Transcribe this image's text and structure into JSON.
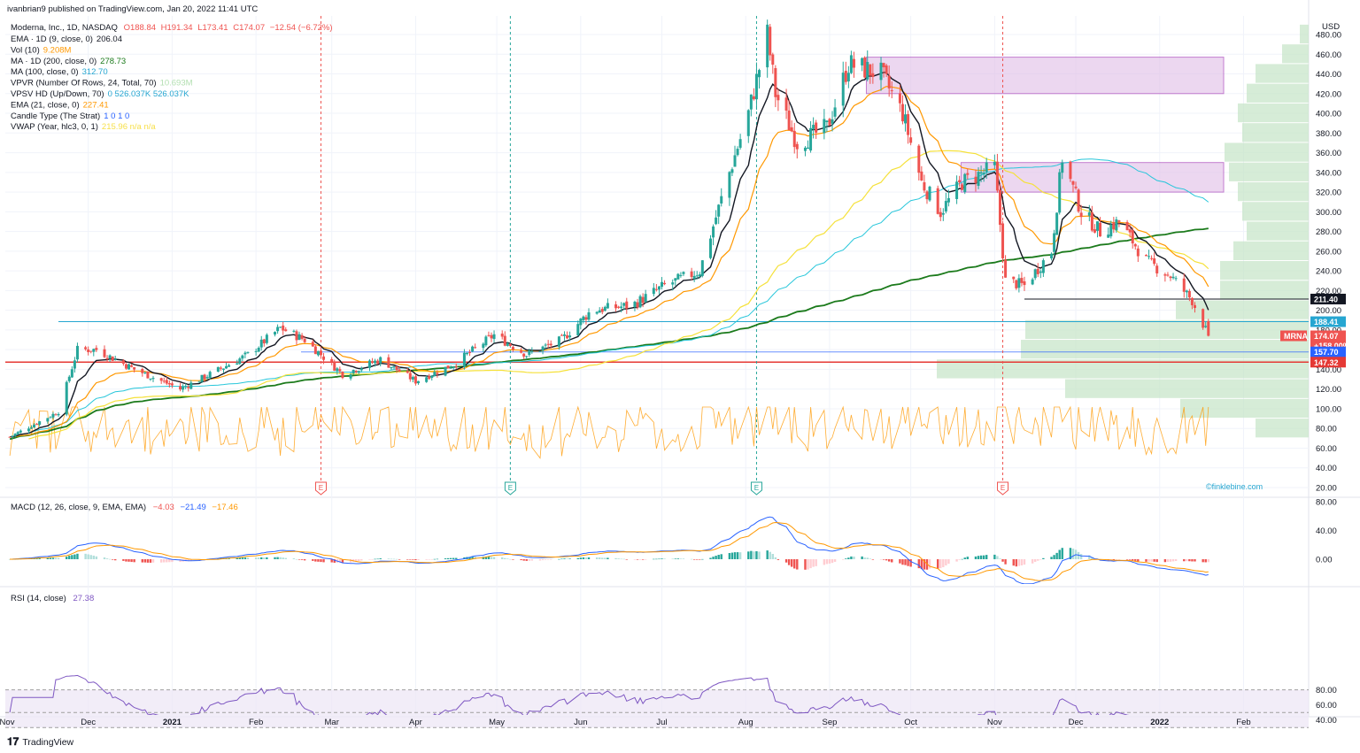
{
  "header": {
    "publisher": "ivanbrian9 published on TradingView.com, Jan 20, 2022 11:41 UTC",
    "symbol_line": "Moderna, Inc., 1D, NASDAQ",
    "ohlc": {
      "o": "O188.84",
      "h": "H191.34",
      "l": "L173.41",
      "c": "C174.07",
      "chg": "−12.54 (−6.72%)"
    },
    "indicators": [
      {
        "name": "EMA · 1D (9, close, 0)",
        "value": "206.04",
        "color": "#131722"
      },
      {
        "name": "Vol (10)",
        "value": "9.208M",
        "color": "#ff9800"
      },
      {
        "name": "MA · 1D (200, close, 0)",
        "value": "278.73",
        "color": "#1b7a1b"
      },
      {
        "name": "MA (100, close, 0)",
        "value": "312.70",
        "color": "#26a6d1"
      },
      {
        "name": "VPVR (Number Of Rows, 24, Total, 70)",
        "value": "10.693M",
        "color": "#b2dfb0"
      },
      {
        "name": "VPSV HD (Up/Down, 70)",
        "value": "0  526.037K  526.037K",
        "color": "#26a6d1"
      },
      {
        "name": "EMA (21, close, 0)",
        "value": "227.41",
        "color": "#ff9800"
      },
      {
        "name": "Candle Type (The Strat)",
        "value": "1  0  1  0",
        "color": "#2962ff"
      },
      {
        "name": "VWAP (Year, hlc3, 0, 1)",
        "value": "215.96  n/a  n/a",
        "color": "#f7e04b"
      }
    ]
  },
  "price_axis": {
    "currency": "USD",
    "ticks": [
      "480.00",
      "460.00",
      "440.00",
      "420.00",
      "400.00",
      "380.00",
      "360.00",
      "340.00",
      "320.00",
      "300.00",
      "280.00",
      "260.00",
      "240.00",
      "220.00",
      "200.00",
      "180.00",
      "160.00",
      "140.00",
      "120.00",
      "100.00",
      "80.00",
      "60.00",
      "40.00",
      "20.00"
    ],
    "labels": [
      {
        "text": "211.40",
        "bg": "#131722"
      },
      {
        "text": "188.41",
        "bg": "#26a6d1"
      },
      {
        "text": "MRNA",
        "bg": "#ef5350"
      },
      {
        "text": "174.07",
        "bg": "#ef5350"
      },
      {
        "text": "+158.00%",
        "bg": "#ef5350"
      },
      {
        "text": "157.70",
        "bg": "#2962ff"
      },
      {
        "text": "147.32",
        "bg": "#e53935"
      }
    ]
  },
  "time_axis": [
    "Nov",
    "Dec",
    "2021",
    "Feb",
    "Mar",
    "Apr",
    "May",
    "Jun",
    "Jul",
    "Aug",
    "Sep",
    "Oct",
    "Nov",
    "Dec",
    "2022",
    "Feb"
  ],
  "earnings_markers": [
    "E",
    "E",
    "E",
    "E"
  ],
  "watermark": "©finklebine.com",
  "macd_panel": {
    "title": "MACD (12, 26, close, 9, EMA, EMA)",
    "values": [
      "−4.03",
      "−21.49",
      "−17.46"
    ],
    "ticks": [
      "80.00",
      "40.00",
      "0.00"
    ]
  },
  "rsi_panel": {
    "title": "RSI (14, close)",
    "value": "27.38",
    "ticks": [
      "80.00",
      "60.00",
      "40.00"
    ]
  },
  "footer": {
    "brand": "TradingView"
  },
  "colors": {
    "up": "#26a69a",
    "down": "#ef5350",
    "ema9": "#131722",
    "ema21": "#ff9800",
    "ma100": "#26c6da",
    "ma200": "#1b7a1b",
    "vwap": "#f5e13a",
    "rsi": "#7e57c2"
  },
  "chart_data": {
    "type": "candlestick",
    "title": "",
    "price_anchors": [
      {
        "date": "2020-11-01",
        "close": 70
      },
      {
        "date": "2020-11-20",
        "close": 97
      },
      {
        "date": "2020-11-27",
        "close": 160
      },
      {
        "date": "2020-12-04",
        "close": 160
      },
      {
        "date": "2020-12-18",
        "close": 140
      },
      {
        "date": "2021-01-04",
        "close": 120
      },
      {
        "date": "2021-01-15",
        "close": 135
      },
      {
        "date": "2021-01-29",
        "close": 155
      },
      {
        "date": "2021-02-10",
        "close": 182
      },
      {
        "date": "2021-02-19",
        "close": 170
      },
      {
        "date": "2021-03-05",
        "close": 135
      },
      {
        "date": "2021-03-19",
        "close": 150
      },
      {
        "date": "2021-04-01",
        "close": 128
      },
      {
        "date": "2021-04-15",
        "close": 145
      },
      {
        "date": "2021-04-30",
        "close": 175
      },
      {
        "date": "2021-05-12",
        "close": 155
      },
      {
        "date": "2021-05-25",
        "close": 170
      },
      {
        "date": "2021-06-05",
        "close": 200
      },
      {
        "date": "2021-06-20",
        "close": 205
      },
      {
        "date": "2021-07-02",
        "close": 225
      },
      {
        "date": "2021-07-15",
        "close": 240
      },
      {
        "date": "2021-07-26",
        "close": 340
      },
      {
        "date": "2021-08-02",
        "close": 400
      },
      {
        "date": "2021-08-09",
        "close": 480
      },
      {
        "date": "2021-08-12",
        "close": 420
      },
      {
        "date": "2021-08-20",
        "close": 370
      },
      {
        "date": "2021-08-31",
        "close": 385
      },
      {
        "date": "2021-09-08",
        "close": 450
      },
      {
        "date": "2021-09-20",
        "close": 440
      },
      {
        "date": "2021-09-28",
        "close": 400
      },
      {
        "date": "2021-10-05",
        "close": 330
      },
      {
        "date": "2021-10-12",
        "close": 300
      },
      {
        "date": "2021-10-20",
        "close": 330
      },
      {
        "date": "2021-11-01",
        "close": 345
      },
      {
        "date": "2021-11-05",
        "close": 230
      },
      {
        "date": "2021-11-12",
        "close": 225
      },
      {
        "date": "2021-11-22",
        "close": 260
      },
      {
        "date": "2021-11-26",
        "close": 355
      },
      {
        "date": "2021-12-03",
        "close": 300
      },
      {
        "date": "2021-12-10",
        "close": 280
      },
      {
        "date": "2021-12-17",
        "close": 290
      },
      {
        "date": "2021-12-27",
        "close": 250
      },
      {
        "date": "2022-01-05",
        "close": 235
      },
      {
        "date": "2022-01-13",
        "close": 210
      },
      {
        "date": "2022-01-19",
        "close": 174
      }
    ],
    "ema9_last": 206.04,
    "ema21_last": 227.41,
    "ma100_last": 312.7,
    "ma200_last": 278.73,
    "vwap_last": 215.96,
    "horizontal_levels": [
      211.4,
      188.41,
      157.7,
      147.32
    ],
    "supply_zones": [
      {
        "from": "2021-09-10",
        "to": "2022-01-19",
        "low": 420,
        "high": 457
      },
      {
        "from": "2021-10-15",
        "to": "2022-01-19",
        "low": 320,
        "high": 350
      }
    ],
    "earnings_dates": [
      "2021-02-25",
      "2021-05-06",
      "2021-08-05",
      "2021-11-04"
    ],
    "y_axis": {
      "range": [
        20,
        480
      ]
    },
    "macd": {
      "macd": -4.03,
      "signal": -21.49,
      "hist": -17.46,
      "range": [
        -25,
        80
      ]
    },
    "rsi": {
      "last": 27.38,
      "range": [
        20,
        90
      ],
      "bands": [
        30,
        50,
        80
      ]
    }
  }
}
